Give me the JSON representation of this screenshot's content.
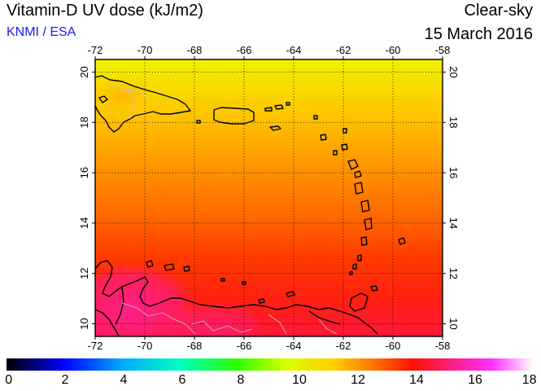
{
  "header": {
    "title": "Vitamin-D UV dose (kJ/m2)",
    "credit": "KNMI / ESA",
    "mode": "Clear-sky",
    "date": "15 March 2016"
  },
  "map": {
    "lon_range": [
      -72,
      -58
    ],
    "lat_range": [
      9.5,
      20.5
    ],
    "lon_ticks": [
      "-72",
      "-70",
      "-68",
      "-66",
      "-64",
      "-62",
      "-60",
      "-58"
    ],
    "lat_ticks": [
      "10",
      "12",
      "14",
      "16",
      "18",
      "20"
    ],
    "grid": true,
    "field_colors": {
      "north": "#f4ee00",
      "mid": "#ff9a00",
      "south": "#ff3300",
      "land_peak": "#ff1e8c",
      "coast": "#000000",
      "border": "#c8c8c8"
    }
  },
  "colorbar": {
    "min": 0,
    "max": 18,
    "labels": [
      "0",
      "2",
      "4",
      "6",
      "8",
      "10",
      "12",
      "14",
      "16",
      "18"
    ],
    "stops": [
      "#000000",
      "#0000ff",
      "#00aaff",
      "#00ffc0",
      "#30ff00",
      "#d8ff00",
      "#ffd000",
      "#ff7000",
      "#ff1000",
      "#ff1e78",
      "#ff30ff",
      "#ffffff"
    ]
  }
}
